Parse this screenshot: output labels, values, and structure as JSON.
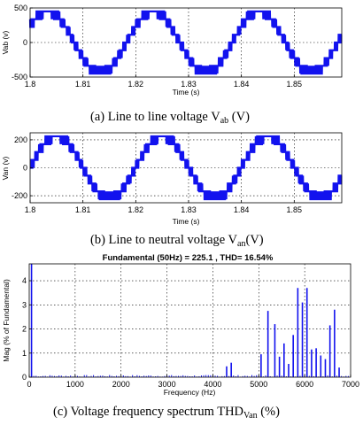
{
  "colors": {
    "series": "#1212ee",
    "axis": "#000000"
  },
  "captions": {
    "a": {
      "main": "(a) Line to line voltage V",
      "sub": "ab",
      "tail": " (V)"
    },
    "b": {
      "main": "(b) Line to neutral voltage V",
      "sub": "an",
      "tail": "(V)"
    },
    "c": {
      "main": "(c) Voltage frequency spectrum THD",
      "sub": "Van",
      "tail": " (%)"
    }
  },
  "chart_data": [
    {
      "type": "line",
      "waveform": "multilevel-staircase",
      "series": [
        {
          "peak": 450,
          "frequency_hz": 50,
          "phase_zero_crossing_s": 1.7983
        }
      ],
      "ylabel": "Vab (v)",
      "xlabel": "Time (s)",
      "xlim": [
        1.8,
        1.859
      ],
      "ylim": [
        -500,
        500
      ],
      "xticks": [
        1.8,
        1.81,
        1.82,
        1.83,
        1.84,
        1.85
      ],
      "xtick_labels": [
        "1.8",
        "1.81",
        "1.82",
        "1.83",
        "1.84",
        "1.85"
      ],
      "yticks": [
        500,
        0,
        -500
      ],
      "ytick_labels": [
        "500",
        "0",
        "-500"
      ],
      "grid": true
    },
    {
      "type": "line",
      "waveform": "multilevel-staircase",
      "series": [
        {
          "peak": 225,
          "frequency_hz": 50,
          "phase_zero_crossing_s": 1.8
        }
      ],
      "ylabel": "Van (v)",
      "xlabel": "Time (s)",
      "xlim": [
        1.8,
        1.859
      ],
      "ylim": [
        -250,
        250
      ],
      "xticks": [
        1.8,
        1.81,
        1.82,
        1.83,
        1.84,
        1.85
      ],
      "xtick_labels": [
        "1.8",
        "1.81",
        "1.82",
        "1.83",
        "1.84",
        "1.85"
      ],
      "yticks": [
        200,
        0,
        -200
      ],
      "ytick_labels": [
        "200",
        "0",
        "-200"
      ],
      "grid": true
    },
    {
      "type": "bar",
      "title": "Fundamental (50Hz) = 225.1 , THD= 16.54%",
      "ylabel": "Mag (% of Fundamental)",
      "xlabel": "Frequency (Hz)",
      "xlim": [
        0,
        7000
      ],
      "ylim": [
        0,
        4.7
      ],
      "xticks": [
        0,
        1000,
        2000,
        3000,
        4000,
        5000,
        6000,
        7000
      ],
      "xtick_labels": [
        "0",
        "1000",
        "2000",
        "3000",
        "4000",
        "5000",
        "6000",
        "7000"
      ],
      "yticks": [
        0,
        1,
        2,
        3,
        4
      ],
      "ytick_labels": [
        "0",
        "1",
        "2",
        "3",
        "4"
      ],
      "grid": true,
      "x": [
        50,
        4300,
        4400,
        5050,
        5200,
        5350,
        5450,
        5550,
        5650,
        5750,
        5850,
        5950,
        6050,
        6150,
        6250,
        6350,
        6450,
        6550,
        6650,
        6750
      ],
      "values": [
        4.7,
        0.45,
        0.6,
        0.95,
        2.75,
        2.2,
        0.85,
        1.4,
        0.55,
        1.75,
        3.7,
        3.1,
        3.7,
        1.15,
        1.2,
        0.9,
        0.75,
        2.15,
        2.8,
        0.4
      ]
    }
  ]
}
